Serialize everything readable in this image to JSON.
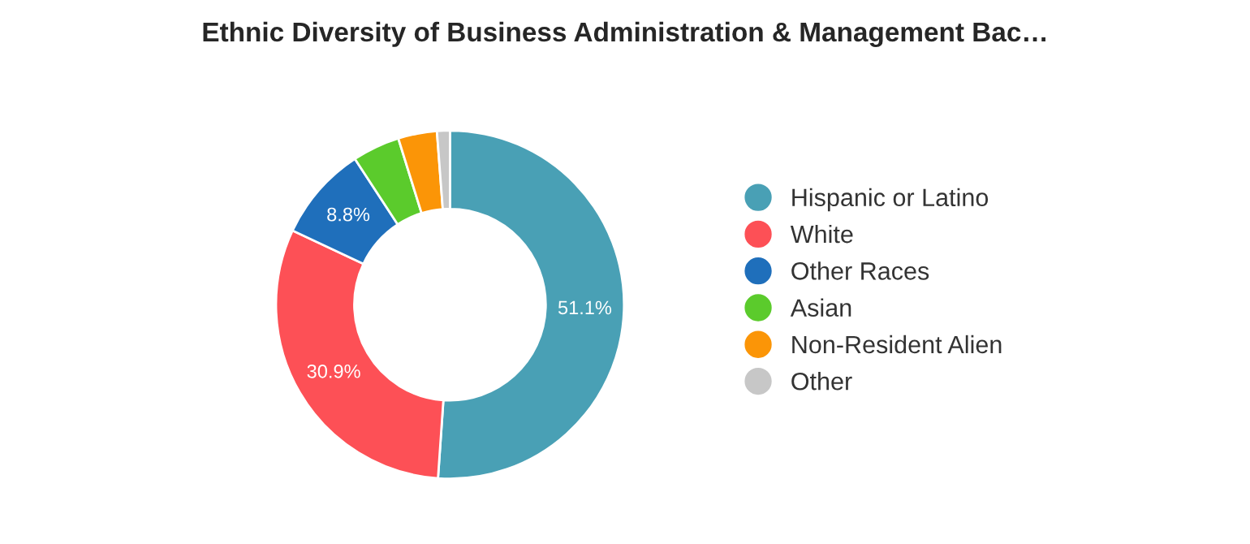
{
  "chart_data": {
    "type": "donut",
    "title": "Ethnic Diversity of Business Administration & Management Bac…",
    "categories": [
      "Hispanic or Latino",
      "White",
      "Other Races",
      "Asian",
      "Non-Resident Alien",
      "Other"
    ],
    "values": [
      51.1,
      30.9,
      8.8,
      4.4,
      3.6,
      1.2
    ],
    "value_labels": [
      "51.1%",
      "30.9%",
      "8.8%",
      null,
      null,
      null
    ],
    "colors": [
      "#49a0b5",
      "#fd5056",
      "#1f6fbb",
      "#5bcb2c",
      "#fb9507",
      "#c7c7c7"
    ],
    "legend": "right"
  }
}
